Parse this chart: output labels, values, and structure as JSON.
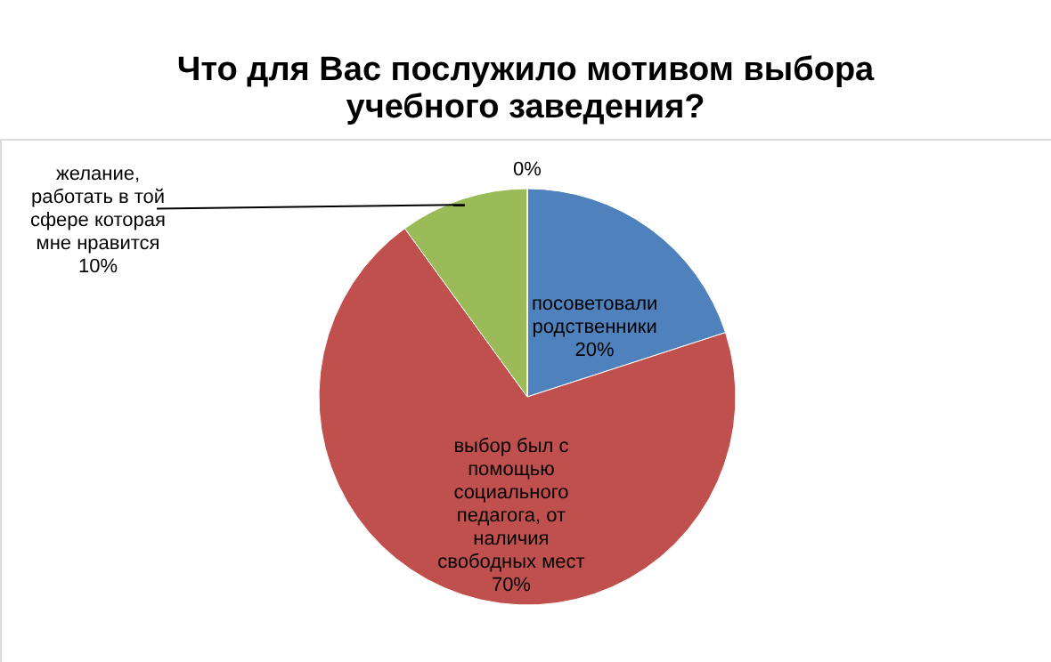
{
  "chart_data": {
    "type": "pie",
    "title": "Что для Вас послужило мотивом выбора учебного заведения?",
    "categories": [
      "посоветовали родственники",
      "выбор был с помощью социального педагога, от наличия свободных мест",
      "желание, работать в той сфере которая мне нравится",
      null
    ],
    "values": [
      20,
      70,
      10,
      0
    ],
    "value_labels": [
      "20%",
      "70%",
      "10%",
      "0%"
    ],
    "colors": [
      "#4f81bd",
      "#c0504d",
      "#9bbb59",
      "#8064a2"
    ]
  }
}
